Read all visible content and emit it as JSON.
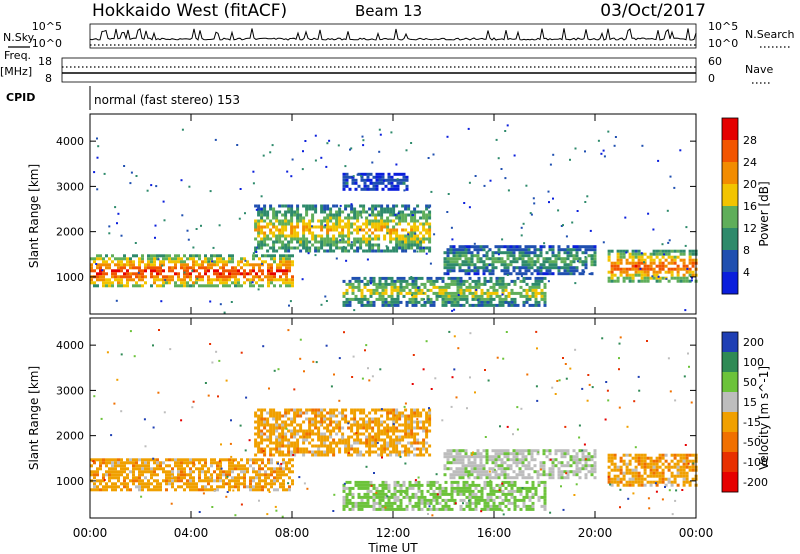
{
  "header": {
    "title": "Hokkaido West (fitACF)",
    "beam": "Beam 13",
    "date": "03/Oct/2017"
  },
  "noise_panel": {
    "left_label": "N.Sky",
    "right_label": "N.Search",
    "ticks": [
      "10^5",
      "10^0"
    ]
  },
  "freq_panel": {
    "left_label_1": "Freq.",
    "left_label_2": "[MHz]",
    "left_ticks": [
      "18",
      "8"
    ],
    "right_label": "Nave",
    "right_ticks": [
      "60",
      "0"
    ]
  },
  "cpid": {
    "label": "CPID",
    "program": "normal (fast stereo) 153"
  },
  "chart_data": [
    {
      "type": "heatmap",
      "title": "",
      "quantity": "Power",
      "xlabel": "Time UT",
      "ylabel": "Slant Range [km]",
      "x_ticks": [
        "00:00",
        "04:00",
        "08:00",
        "12:00",
        "16:00",
        "20:00",
        "00:00"
      ],
      "y_ticks": [
        1000,
        2000,
        3000,
        4000
      ],
      "ylim": [
        180,
        4600
      ],
      "xlim_hours": [
        0,
        24
      ],
      "colorbar": {
        "label": "Power [dB]",
        "ticks": [
          4,
          8,
          12,
          16,
          20,
          24,
          28
        ],
        "colors": [
          "#0a1edc",
          "#1f4fb0",
          "#2e8a6b",
          "#5fae5a",
          "#f2c400",
          "#f28c00",
          "#f25500",
          "#e50000"
        ]
      },
      "echo_regions": [
        {
          "t": [
            0.0,
            8.0
          ],
          "range_km": [
            780,
            1500
          ],
          "power_db": 26
        },
        {
          "t": [
            6.5,
            13.5
          ],
          "range_km": [
            1550,
            2600
          ],
          "power_db": 18
        },
        {
          "t": [
            10.0,
            12.5
          ],
          "range_km": [
            2950,
            3300
          ],
          "power_db": 6
        },
        {
          "t": [
            10.0,
            18.0
          ],
          "range_km": [
            400,
            1000
          ],
          "power_db": 16
        },
        {
          "t": [
            14.0,
            20.0
          ],
          "range_km": [
            1100,
            1700
          ],
          "power_db": 12
        },
        {
          "t": [
            20.5,
            24.0
          ],
          "range_km": [
            900,
            1600
          ],
          "power_db": 24
        }
      ]
    },
    {
      "type": "heatmap",
      "title": "",
      "quantity": "Velocity",
      "xlabel": "Time UT",
      "ylabel": "Slant Range [km]",
      "x_ticks": [
        "00:00",
        "04:00",
        "08:00",
        "12:00",
        "16:00",
        "20:00",
        "00:00"
      ],
      "y_ticks": [
        1000,
        2000,
        3000,
        4000
      ],
      "ylim": [
        180,
        4600
      ],
      "xlim_hours": [
        0,
        24
      ],
      "colorbar": {
        "label": "Velocity [m s^-1]",
        "ticks": [
          200,
          100,
          50,
          15,
          -15,
          -50,
          -100,
          -200
        ],
        "colors": [
          "#1f3fb4",
          "#2f8a55",
          "#6cc33a",
          "#bdbdbd",
          "#f0a000",
          "#f07000",
          "#e83000",
          "#e60000"
        ]
      },
      "echo_regions": [
        {
          "t": [
            0.0,
            8.0
          ],
          "range_km": [
            780,
            1500
          ],
          "velocity_ms": 0
        },
        {
          "t": [
            6.5,
            13.5
          ],
          "range_km": [
            1550,
            2600
          ],
          "velocity_ms": 0
        },
        {
          "t": [
            10.0,
            18.0
          ],
          "range_km": [
            400,
            1000
          ],
          "velocity_ms": 60
        },
        {
          "t": [
            14.0,
            20.0
          ],
          "range_km": [
            1100,
            1700
          ],
          "velocity_ms": 40
        },
        {
          "t": [
            20.5,
            24.0
          ],
          "range_km": [
            900,
            1600
          ],
          "velocity_ms": 0
        }
      ]
    }
  ]
}
